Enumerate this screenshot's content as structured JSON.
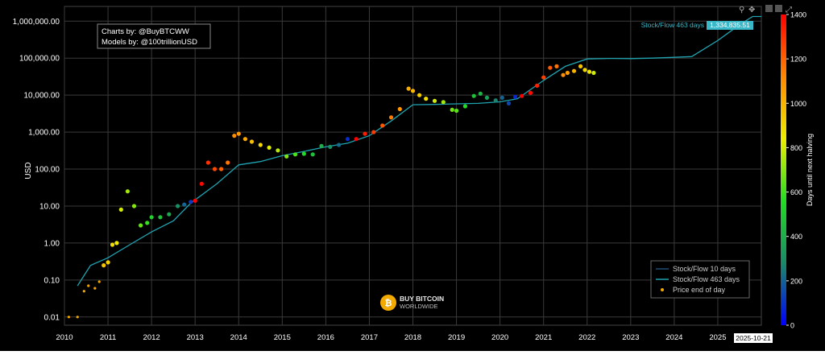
{
  "credits": {
    "line1": "Charts by: @BuyBTCWW",
    "line2": "Models by: @100trillionUSD"
  },
  "watermark": {
    "line1": "BUY BITCOIN",
    "line2": "WORLDWIDE"
  },
  "toolbar": {
    "icons": [
      "zoom-icon",
      "pan-icon",
      "plus-icon",
      "minus-icon",
      "reset-icon",
      "home-icon"
    ]
  },
  "hover_label": {
    "series": "Stock/Flow 463 days",
    "value": "1,334,835.51",
    "date": "2025-10-21"
  },
  "colors": {
    "background": "#000000",
    "sf10": "#1f4e79",
    "sf463": "#1fa3b0",
    "price_dot": "#f5a800",
    "label_bg": "#38b8c8"
  },
  "chart_data": {
    "type": "scatter",
    "ylabel": "USD",
    "xlabel": "",
    "y_scale": "log",
    "ylim": [
      0.006,
      2500000
    ],
    "xlim": [
      2010,
      2026
    ],
    "x_ticks": [
      "2010",
      "2011",
      "2012",
      "2013",
      "2014",
      "2015",
      "2016",
      "2017",
      "2018",
      "2019",
      "2020",
      "2021",
      "2022",
      "2023",
      "2024",
      "2025"
    ],
    "y_ticks": [
      {
        "v": 0.01,
        "label": "0.01"
      },
      {
        "v": 0.1,
        "label": "0.10"
      },
      {
        "v": 1,
        "label": "1.00"
      },
      {
        "v": 10,
        "label": "10.00"
      },
      {
        "v": 100,
        "label": "100.00"
      },
      {
        "v": 1000,
        "label": "1,000.00"
      },
      {
        "v": 10000,
        "label": "10,000.00"
      },
      {
        "v": 100000,
        "label": "100,000.00"
      },
      {
        "v": 1000000,
        "label": "1,000,000.00"
      }
    ],
    "grid": true,
    "legend": {
      "position": "bottom-right",
      "entries": [
        "Stock/Flow 10 days",
        "Stock/Flow 463 days",
        "Price end of day"
      ]
    },
    "colorbar": {
      "label": "Days until next halving",
      "range": [
        0,
        1400
      ],
      "ticks": [
        0,
        200,
        400,
        600,
        800,
        1000,
        1200,
        1400
      ]
    },
    "series": [
      {
        "name": "Stock/Flow 463 days",
        "x": [
          2010.3,
          2010.6,
          2011.0,
          2011.5,
          2012.0,
          2012.5,
          2012.9,
          2013.5,
          2014.0,
          2014.5,
          2015.0,
          2015.5,
          2016.0,
          2016.5,
          2017.0,
          2017.5,
          2018.0,
          2018.5,
          2019.0,
          2019.5,
          2020.0,
          2020.4,
          2021.0,
          2021.5,
          2022.0,
          2022.5,
          2023.0,
          2023.5,
          2024.0,
          2024.4,
          2025.0,
          2025.5,
          2025.8,
          2026.0
        ],
        "y": [
          0.07,
          0.25,
          0.4,
          0.9,
          2.0,
          4.0,
          12,
          40,
          130,
          160,
          230,
          300,
          400,
          500,
          800,
          2000,
          5500,
          5600,
          5800,
          6000,
          6600,
          8000,
          25000,
          60000,
          95000,
          98000,
          97000,
          100000,
          105000,
          110000,
          300000,
          800000,
          1334835.51,
          1334835.51
        ]
      },
      {
        "name": "Price end of day",
        "x": [
          2010.1,
          2010.3,
          2010.45,
          2010.55,
          2010.7,
          2010.8,
          2010.9,
          2011.0,
          2011.1,
          2011.2,
          2011.3,
          2011.45,
          2011.6,
          2011.75,
          2011.9,
          2012.0,
          2012.2,
          2012.4,
          2012.6,
          2012.75,
          2012.9,
          2013.0,
          2013.15,
          2013.3,
          2013.45,
          2013.6,
          2013.75,
          2013.9,
          2014.0,
          2014.15,
          2014.3,
          2014.5,
          2014.7,
          2014.9,
          2015.1,
          2015.3,
          2015.5,
          2015.7,
          2015.9,
          2016.1,
          2016.3,
          2016.5,
          2016.7,
          2016.9,
          2017.1,
          2017.3,
          2017.5,
          2017.7,
          2017.9,
          2018.0,
          2018.15,
          2018.3,
          2018.5,
          2018.7,
          2018.9,
          2019.0,
          2019.2,
          2019.4,
          2019.55,
          2019.7,
          2019.9,
          2020.05,
          2020.2,
          2020.35,
          2020.5,
          2020.7,
          2020.85,
          2021.0,
          2021.15,
          2021.3,
          2021.45,
          2021.55,
          2021.7,
          2021.85,
          2021.95,
          2022.05,
          2022.15
        ],
        "y": [
          0.01,
          0.01,
          0.05,
          0.07,
          0.06,
          0.09,
          0.25,
          0.3,
          0.9,
          1.0,
          8,
          25,
          10,
          3,
          3.5,
          5,
          5,
          6,
          10,
          11,
          13,
          14,
          40,
          150,
          100,
          100,
          150,
          800,
          900,
          650,
          550,
          450,
          380,
          320,
          220,
          250,
          260,
          250,
          420,
          400,
          450,
          650,
          650,
          900,
          1000,
          1500,
          2500,
          4200,
          15000,
          13000,
          10000,
          8000,
          7000,
          6500,
          4000,
          3800,
          5000,
          9500,
          11000,
          8500,
          7200,
          8500,
          6000,
          9000,
          9500,
          11500,
          18000,
          30000,
          55000,
          60000,
          35000,
          40000,
          45000,
          60000,
          48000,
          43000,
          40000
        ],
        "c": [
          1100,
          1080,
          1050,
          1030,
          1000,
          980,
          950,
          920,
          880,
          850,
          800,
          740,
          700,
          650,
          590,
          520,
          460,
          380,
          300,
          210,
          120,
          1440,
          1380,
          1300,
          1250,
          1200,
          1160,
          1100,
          1080,
          1030,
          970,
          900,
          820,
          760,
          690,
          620,
          560,
          470,
          400,
          300,
          220,
          90,
          1400,
          1340,
          1280,
          1220,
          1150,
          1080,
          1020,
          990,
          930,
          880,
          800,
          740,
          670,
          640,
          560,
          470,
          420,
          350,
          270,
          200,
          140,
          80,
          1440,
          1380,
          1330,
          1270,
          1210,
          1160,
          1100,
          1060,
          1000,
          950,
          900,
          860,
          800
        ]
      }
    ]
  }
}
